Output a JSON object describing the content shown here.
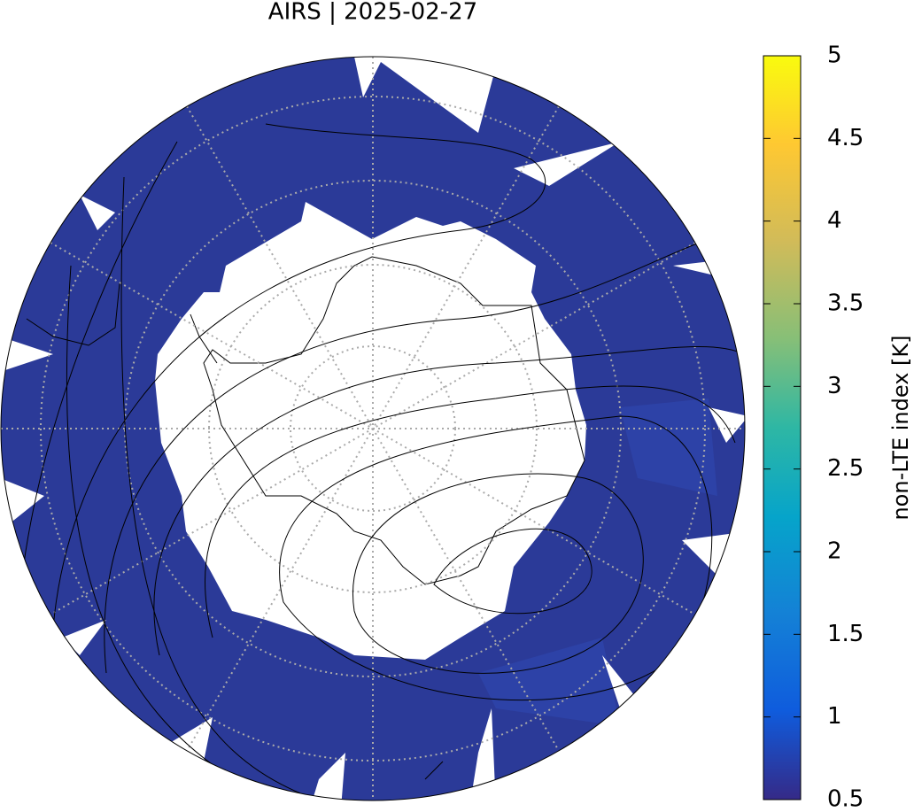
{
  "title": "AIRS | 2025-02-27",
  "colorbar": {
    "label": "non-LTE index [K]",
    "lim": [
      0.5,
      5
    ],
    "ticks": [
      0.5,
      1,
      1.5,
      2,
      2.5,
      3,
      3.5,
      4,
      4.5,
      5
    ]
  }
}
